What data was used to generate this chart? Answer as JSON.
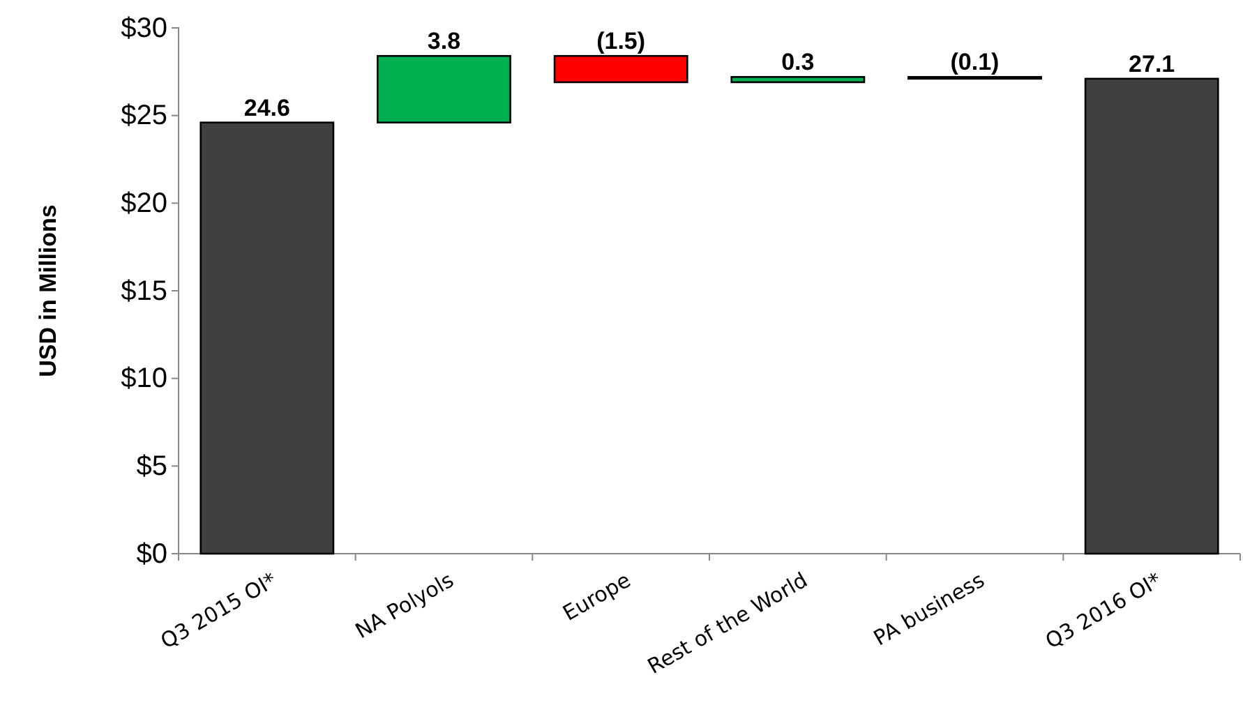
{
  "chart_data": {
    "type": "bar",
    "ylabel": "USD in Millions",
    "categories": [
      "Q3 2015 OI*",
      "NA Polyols",
      "Europe",
      "Rest of the World",
      "PA business",
      "Q3 2016 OI*"
    ],
    "values": [
      24.6,
      3.8,
      -1.5,
      0.3,
      -0.1,
      27.1
    ],
    "base": [
      0,
      24.6,
      28.4,
      26.9,
      27.2,
      0
    ],
    "colors": [
      "#404040",
      "#00b050",
      "#ff0000",
      "#00b050",
      "#ff0000",
      "#404040"
    ],
    "value_labels": [
      "24.6",
      "3.8",
      "(1.5)",
      "0.3",
      "(0.1)",
      "27.1"
    ],
    "ylim": [
      0,
      30
    ],
    "yticks": [
      {
        "value": 0,
        "label": "$0"
      },
      {
        "value": 5,
        "label": "$5"
      },
      {
        "value": 10,
        "label": "$10"
      },
      {
        "value": 15,
        "label": "$15"
      },
      {
        "value": 20,
        "label": "$20"
      },
      {
        "value": 25,
        "label": "$25"
      },
      {
        "value": 30,
        "label": "$30"
      }
    ],
    "grid": false
  }
}
